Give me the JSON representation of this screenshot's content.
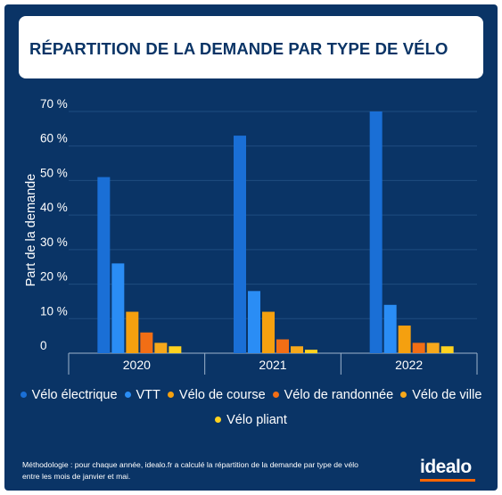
{
  "title": "RÉPARTITION DE LA DEMANDE PAR TYPE DE VÉLO",
  "colors": {
    "background": "#0a3466",
    "title_text": "#0a3466",
    "grid": "#1f4c80",
    "axis": "#9db3cc",
    "text": "#ffffff",
    "logo_underline": "#ff6600"
  },
  "chart_data": {
    "type": "bar",
    "categories": [
      "2020",
      "2021",
      "2022"
    ],
    "ylabel": "Part de la demande",
    "xlabel": "",
    "ylim": [
      0,
      70
    ],
    "yticks": [
      0,
      10,
      20,
      30,
      40,
      50,
      60,
      70
    ],
    "ytick_labels": [
      "0",
      "10 %",
      "20 %",
      "30 %",
      "40 %",
      "50 %",
      "60 %",
      "70 %"
    ],
    "grid": true,
    "legend_position": "bottom",
    "series": [
      {
        "name": "Vélo électrique",
        "color": "#1a6fd6",
        "values": [
          51,
          63,
          70
        ]
      },
      {
        "name": "VTT",
        "color": "#2a8df5",
        "values": [
          26,
          18,
          14
        ]
      },
      {
        "name": "Vélo de course",
        "color": "#f5a00f",
        "values": [
          12,
          12,
          8
        ]
      },
      {
        "name": "Vélo de randonnée",
        "color": "#f26e15",
        "values": [
          6,
          4,
          3
        ]
      },
      {
        "name": "Vélo de ville",
        "color": "#f7a81b",
        "values": [
          3,
          2,
          3
        ]
      },
      {
        "name": "Vélo pliant",
        "color": "#ffd21f",
        "values": [
          2,
          1,
          2
        ]
      }
    ]
  },
  "footnote": {
    "line1": "Méthodologie : pour chaque année, idealo.fr a calculé la répartition de la demande par type de vélo",
    "line2": "entre les mois de janvier et mai."
  },
  "logo": "idealo"
}
